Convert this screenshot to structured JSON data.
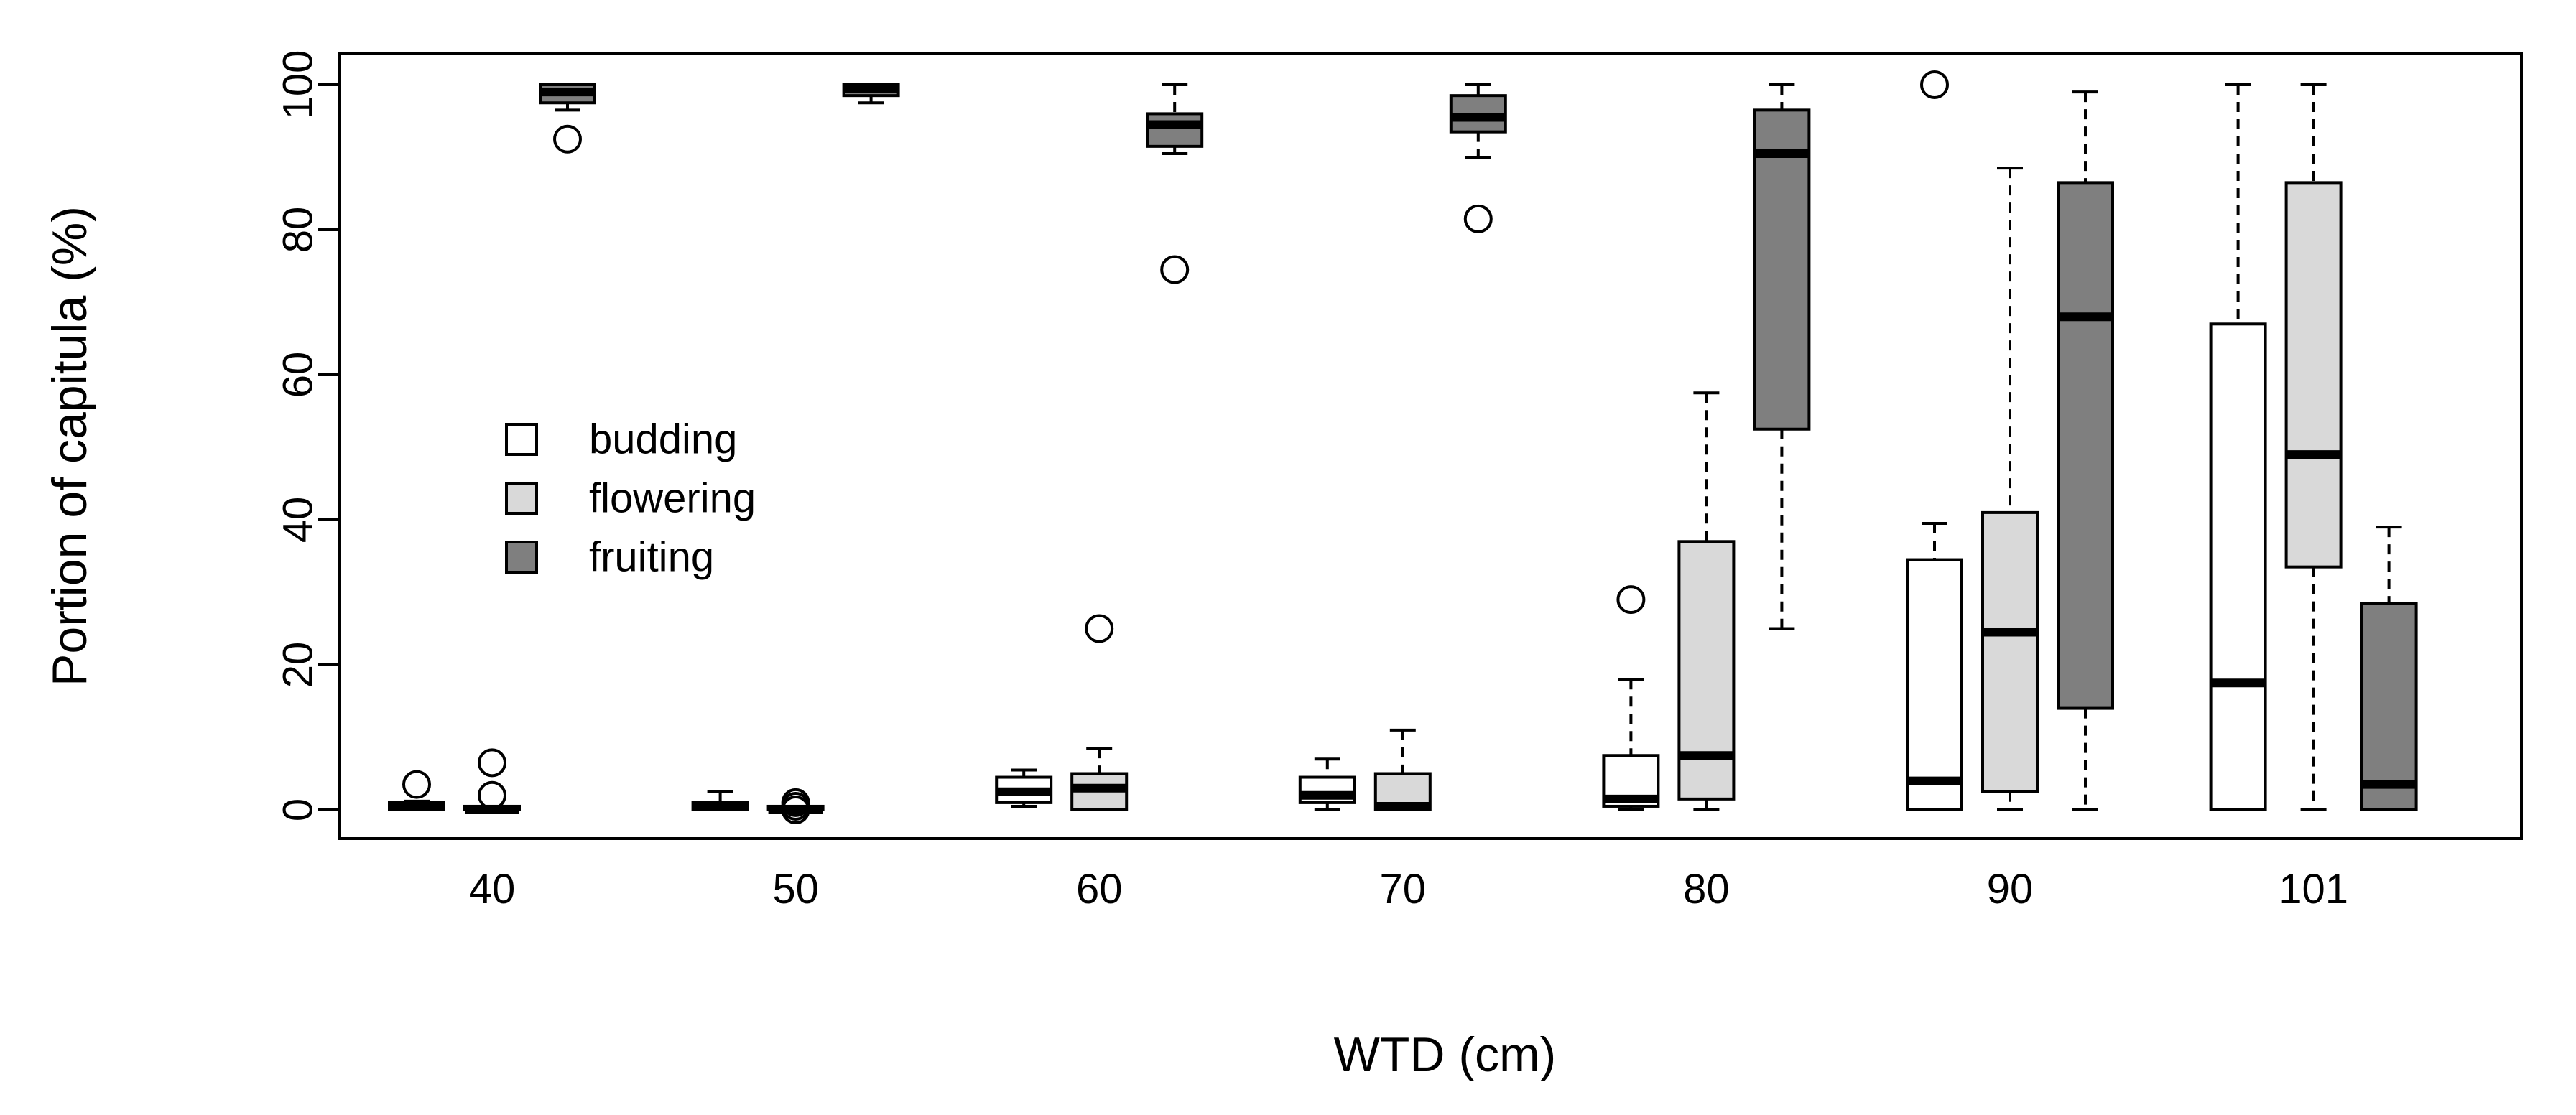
{
  "chart_data": {
    "type": "boxplot",
    "title": "",
    "xlabel": "WTD (cm)",
    "ylabel": "Portion of capitula (%)",
    "ylim": [
      0,
      100
    ],
    "yticks": [
      0,
      20,
      40,
      60,
      80,
      100
    ],
    "categories": [
      "40",
      "50",
      "60",
      "70",
      "80",
      "90",
      "101"
    ],
    "legend": {
      "position": "center-left",
      "entries": [
        {
          "label": "budding",
          "color": "#ffffff"
        },
        {
          "label": "flowering",
          "color": "#d9d9d9"
        },
        {
          "label": "fruiting",
          "color": "#7f7f7f"
        }
      ]
    },
    "series": [
      {
        "name": "budding",
        "color": "#ffffff",
        "boxes": [
          {
            "min": 0,
            "q1": 0,
            "median": 0.5,
            "q3": 1,
            "max": 1.2,
            "outliers": [
              3.5
            ]
          },
          {
            "min": 0,
            "q1": 0,
            "median": 0.5,
            "q3": 1,
            "max": 2.5,
            "outliers": []
          },
          {
            "min": 0.5,
            "q1": 1,
            "median": 2.5,
            "q3": 4.5,
            "max": 5.5,
            "outliers": []
          },
          {
            "min": 0,
            "q1": 1,
            "median": 2,
            "q3": 4.5,
            "max": 7,
            "outliers": []
          },
          {
            "min": 0,
            "q1": 0.5,
            "median": 1.5,
            "q3": 7.5,
            "max": 18,
            "outliers": [
              29
            ]
          },
          {
            "min": 0,
            "q1": 0,
            "median": 4,
            "q3": 34.5,
            "max": 39.5,
            "outliers": [
              100
            ]
          },
          {
            "min": 0,
            "q1": 0,
            "median": 17.5,
            "q3": 67,
            "max": 100,
            "outliers": []
          }
        ]
      },
      {
        "name": "flowering",
        "color": "#d9d9d9",
        "boxes": [
          {
            "min": 0,
            "q1": 0,
            "median": 0,
            "q3": 0.5,
            "max": 0.5,
            "outliers": [
              6.5,
              2
            ]
          },
          {
            "min": 0,
            "q1": 0,
            "median": 0,
            "q3": 0.5,
            "max": 0.5,
            "outliers": [
              1,
              0.5,
              0
            ]
          },
          {
            "min": 0,
            "q1": 0,
            "median": 3,
            "q3": 5,
            "max": 8.5,
            "outliers": [
              25
            ]
          },
          {
            "min": 0,
            "q1": 0,
            "median": 0.5,
            "q3": 5,
            "max": 11,
            "outliers": []
          },
          {
            "min": 0,
            "q1": 1.5,
            "median": 7.5,
            "q3": 37,
            "max": 57.5,
            "outliers": []
          },
          {
            "min": 0,
            "q1": 2.5,
            "median": 24.5,
            "q3": 41,
            "max": 88.5,
            "outliers": []
          },
          {
            "min": 0,
            "q1": 33.5,
            "median": 49,
            "q3": 86.5,
            "max": 100,
            "outliers": []
          }
        ]
      },
      {
        "name": "fruiting",
        "color": "#7f7f7f",
        "boxes": [
          {
            "min": 96.5,
            "q1": 97.5,
            "median": 99,
            "q3": 100,
            "max": 100,
            "outliers": [
              92.5
            ]
          },
          {
            "min": 97.5,
            "q1": 98.5,
            "median": 99.5,
            "q3": 100,
            "max": 100,
            "outliers": []
          },
          {
            "min": 90.5,
            "q1": 91.5,
            "median": 94.5,
            "q3": 96,
            "max": 100,
            "outliers": [
              74.5
            ]
          },
          {
            "min": 90,
            "q1": 93.5,
            "median": 95.5,
            "q3": 98.5,
            "max": 100,
            "outliers": [
              81.5
            ]
          },
          {
            "min": 25,
            "q1": 52.5,
            "median": 90.5,
            "q3": 96.5,
            "max": 100,
            "outliers": []
          },
          {
            "min": 0,
            "q1": 14,
            "median": 68,
            "q3": 86.5,
            "max": 99,
            "outliers": []
          },
          {
            "min": 0,
            "q1": 0,
            "median": 3.5,
            "q3": 28.5,
            "max": 39,
            "outliers": []
          }
        ]
      }
    ]
  }
}
